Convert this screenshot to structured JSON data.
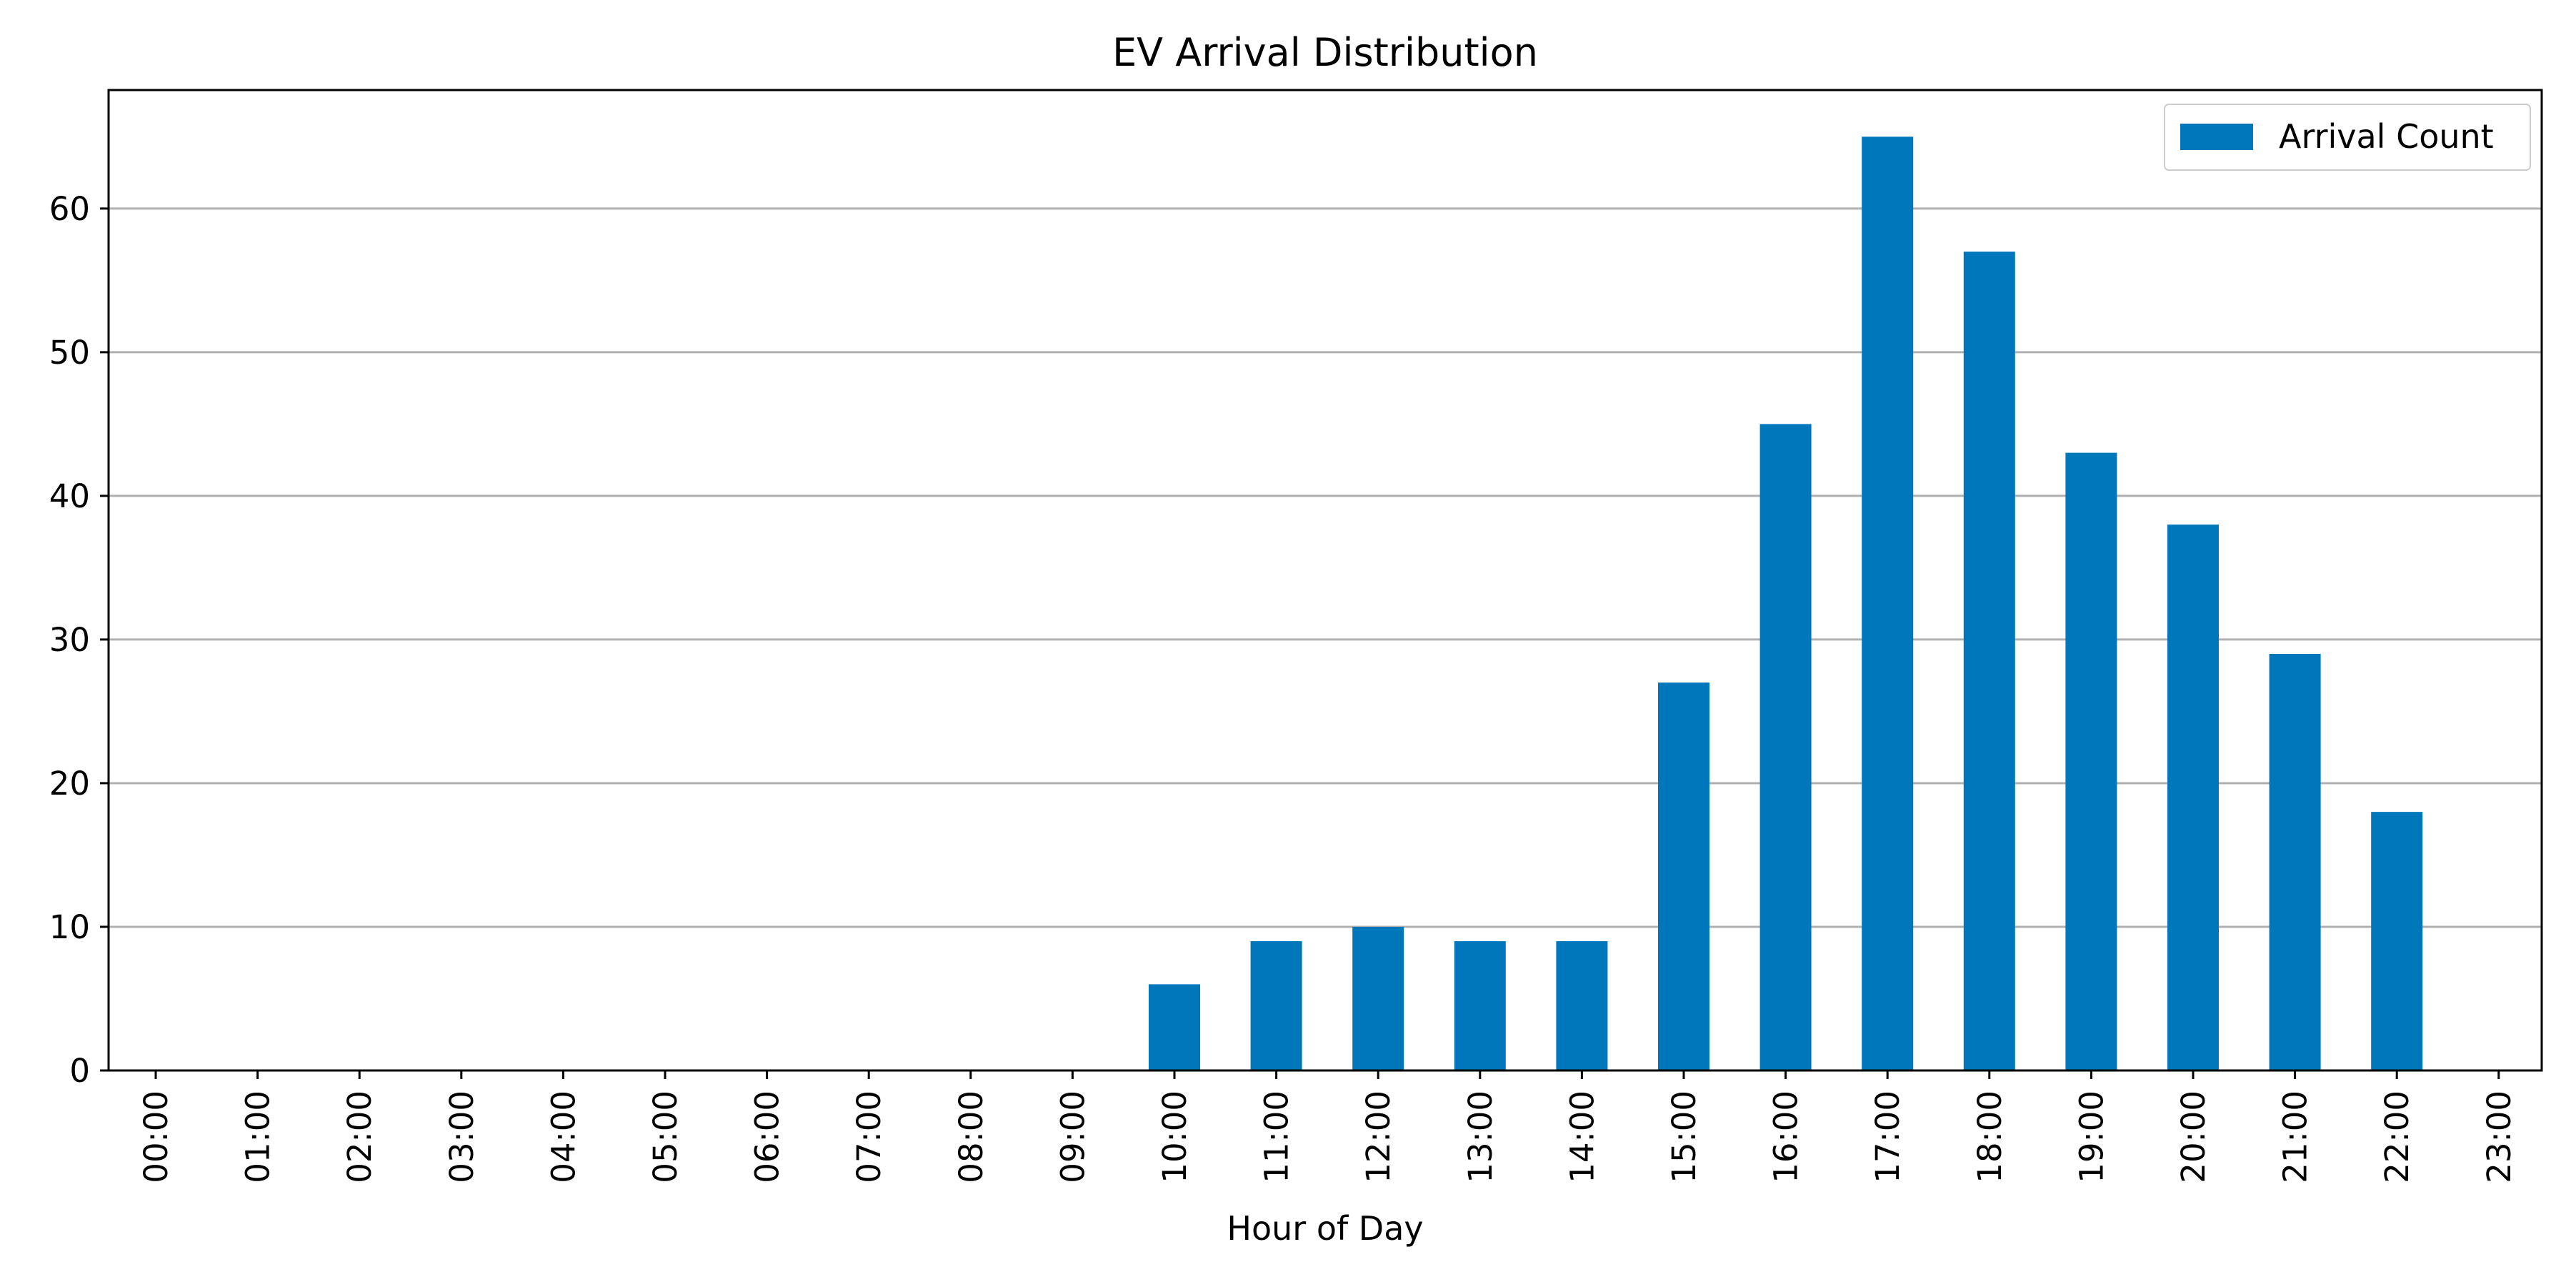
{
  "chart_data": {
    "type": "bar",
    "title": "EV Arrival Distribution",
    "xlabel": "Hour of Day",
    "ylabel": "",
    "categories": [
      "00:00",
      "01:00",
      "02:00",
      "03:00",
      "04:00",
      "05:00",
      "06:00",
      "07:00",
      "08:00",
      "09:00",
      "10:00",
      "11:00",
      "12:00",
      "13:00",
      "14:00",
      "15:00",
      "16:00",
      "17:00",
      "18:00",
      "19:00",
      "20:00",
      "21:00",
      "22:00",
      "23:00"
    ],
    "series": [
      {
        "name": "Arrival Count",
        "values": [
          0,
          0,
          0,
          0,
          0,
          0,
          0,
          0,
          0,
          0,
          6,
          9,
          10,
          9,
          9,
          27,
          45,
          65,
          57,
          43,
          38,
          29,
          18,
          0
        ]
      }
    ],
    "ylim": [
      0,
      68.25
    ],
    "yticks": [
      0,
      10,
      20,
      30,
      40,
      50,
      60
    ],
    "grid": "y",
    "legend": "top-right",
    "colors": {
      "bar": "#0077bb",
      "grid": "#b0b0b0",
      "axis": "#000000"
    }
  }
}
